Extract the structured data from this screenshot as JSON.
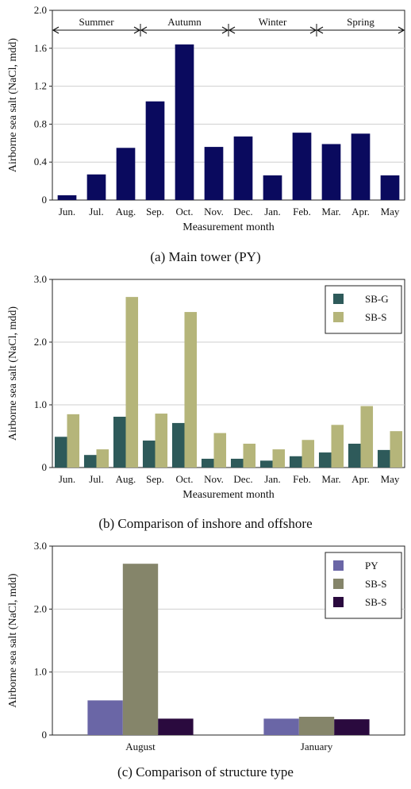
{
  "chart_data": [
    {
      "type": "bar",
      "caption": "(a) Main tower (PY)",
      "xlabel": "Measurement month",
      "ylabel": "Airborne sea salt (NaCl, mdd)",
      "ylim": [
        0,
        2.0
      ],
      "yticks": [
        "0",
        "0.4",
        "0.8",
        "1.2",
        "1.6",
        "2.0"
      ],
      "categories": [
        "Jun.",
        "Jul.",
        "Aug.",
        "Sep.",
        "Oct.",
        "Nov.",
        "Dec.",
        "Jan.",
        "Feb.",
        "Mar.",
        "Apr.",
        "May"
      ],
      "series": [
        {
          "name": "",
          "color": "#0a0a5e",
          "values": [
            0.05,
            0.27,
            0.55,
            1.04,
            1.64,
            0.56,
            0.67,
            0.26,
            0.71,
            0.59,
            0.7,
            0.26
          ]
        }
      ],
      "seasons": [
        {
          "label": "Summer",
          "from": 0,
          "to": 3
        },
        {
          "label": "Autumn",
          "from": 3,
          "to": 6
        },
        {
          "label": "Winter",
          "from": 6,
          "to": 9
        },
        {
          "label": "Spring",
          "from": 9,
          "to": 12
        }
      ],
      "grid": true,
      "legend": "none"
    },
    {
      "type": "bar",
      "caption": "(b) Comparison of inshore and offshore",
      "xlabel": "Measurement month",
      "ylabel": "Airborne sea salt (NaCl, mdd)",
      "ylim": [
        0,
        3.0
      ],
      "yticks": [
        "0",
        "1.0",
        "2.0",
        "3.0"
      ],
      "categories": [
        "Jun.",
        "Jul.",
        "Aug.",
        "Sep.",
        "Oct.",
        "Nov.",
        "Dec.",
        "Jan.",
        "Feb.",
        "Mar.",
        "Apr.",
        "May"
      ],
      "series": [
        {
          "name": "SB-G",
          "color": "#2e5a5a",
          "values": [
            0.49,
            0.2,
            0.81,
            0.43,
            0.71,
            0.14,
            0.14,
            0.11,
            0.18,
            0.24,
            0.38,
            0.28
          ]
        },
        {
          "name": "SB-S",
          "color": "#b5b57a",
          "values": [
            0.85,
            0.29,
            2.72,
            0.86,
            2.48,
            0.55,
            0.38,
            0.29,
            0.44,
            0.68,
            0.98,
            0.58
          ]
        }
      ],
      "grid": true,
      "legend": "top-right"
    },
    {
      "type": "bar",
      "caption": "(c) Comparison of structure type",
      "xlabel": "",
      "ylabel": "Airborne sea salt (NaCl, mdd)",
      "ylim": [
        0,
        3.0
      ],
      "yticks": [
        "0",
        "1.0",
        "2.0",
        "3.0"
      ],
      "categories": [
        "August",
        "January"
      ],
      "series": [
        {
          "name": "PY",
          "color": "#6a66a6",
          "values": [
            0.55,
            0.26
          ]
        },
        {
          "name": "SB-S",
          "color": "#85856a",
          "values": [
            2.72,
            0.29
          ]
        },
        {
          "name": "SB-S",
          "color": "#2a0a3e",
          "values": [
            0.26,
            0.25
          ]
        }
      ],
      "grid": true,
      "legend": "top-right"
    }
  ]
}
